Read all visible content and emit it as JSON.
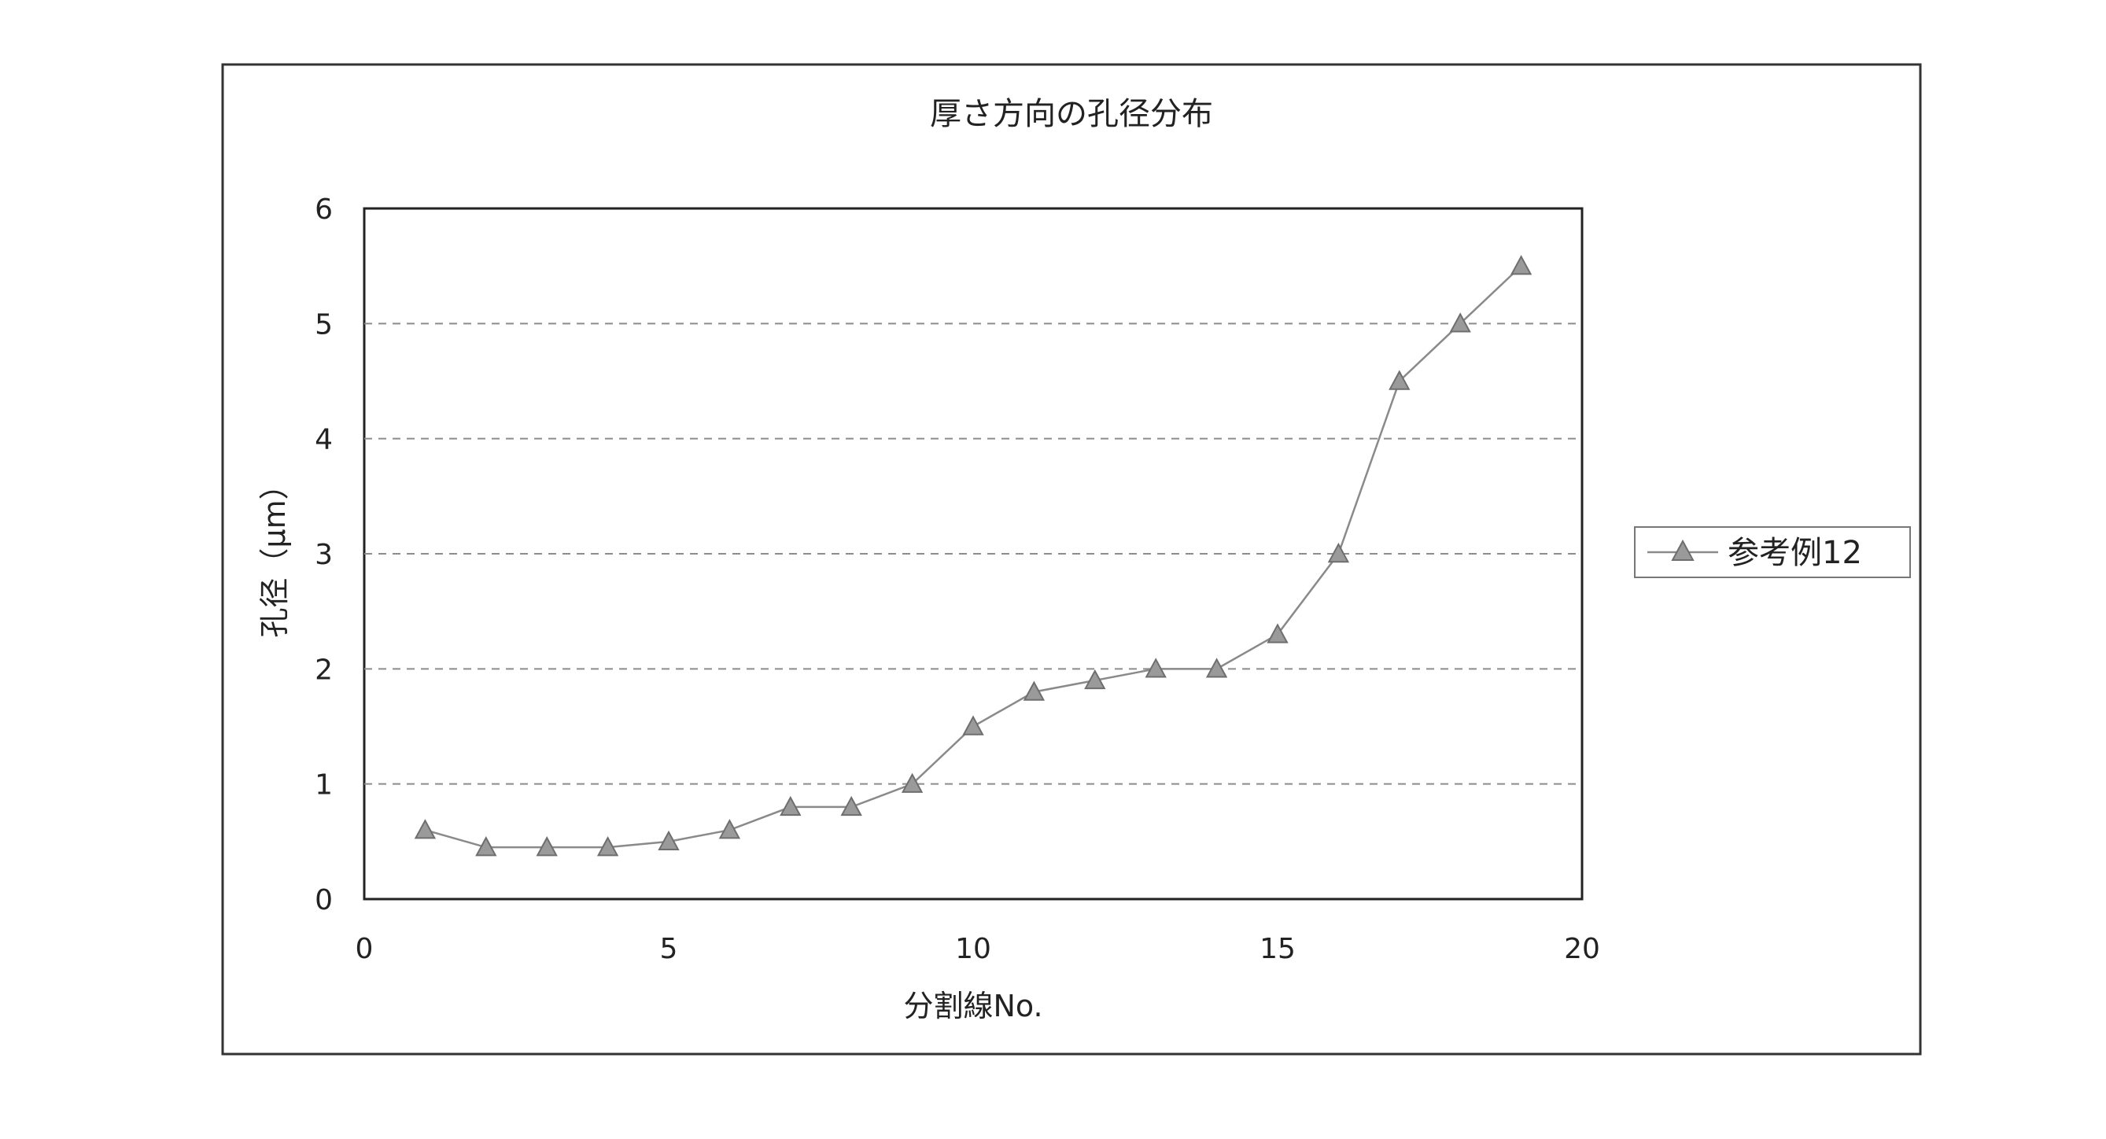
{
  "chart_data": {
    "type": "line",
    "title": "厚さ方向の孔径分布",
    "xlabel": "分割線No.",
    "ylabel": "孔径（μm）",
    "xlim": [
      0,
      20
    ],
    "ylim": [
      0,
      6
    ],
    "x_ticks": [
      "0",
      "5",
      "10",
      "15",
      "20"
    ],
    "y_ticks": [
      "0",
      "1",
      "2",
      "3",
      "4",
      "5",
      "6"
    ],
    "grid": "horizontal-dashed",
    "legend_position": "right",
    "series": [
      {
        "name": "参考例12",
        "marker": "triangle",
        "color": "#8a8a8a",
        "x": [
          1,
          2,
          3,
          4,
          5,
          6,
          7,
          8,
          9,
          10,
          11,
          12,
          13,
          14,
          15,
          16,
          17,
          18,
          19
        ],
        "y": [
          0.6,
          0.45,
          0.45,
          0.45,
          0.5,
          0.6,
          0.8,
          0.8,
          1.0,
          1.5,
          1.8,
          1.9,
          2.0,
          2.0,
          2.3,
          3.0,
          4.5,
          5.0,
          5.5
        ]
      }
    ]
  }
}
